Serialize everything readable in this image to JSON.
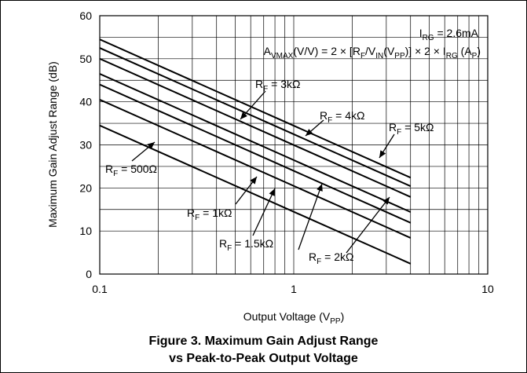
{
  "chart_data": {
    "type": "line",
    "x_scale": "log",
    "xlim": [
      0.1,
      10
    ],
    "ylim": [
      0,
      60
    ],
    "xlabel": "Output Voltage (V_PP)",
    "ylabel": "Maximum Gain Adjust Range (dB)",
    "x_ticks": [
      {
        "value": 0.1,
        "label": "0.1"
      },
      {
        "value": 1,
        "label": "1"
      },
      {
        "value": 10,
        "label": "10"
      }
    ],
    "y_ticks": [
      {
        "value": 0,
        "label": "0"
      },
      {
        "value": 10,
        "label": "10"
      },
      {
        "value": 20,
        "label": "20"
      },
      {
        "value": 30,
        "label": "30"
      },
      {
        "value": 40,
        "label": "40"
      },
      {
        "value": 50,
        "label": "50"
      },
      {
        "value": 60,
        "label": "60"
      }
    ],
    "grid": true,
    "series": [
      {
        "name": "RF = 500Ω",
        "x": [
          0.1,
          4
        ],
        "y": [
          34.5,
          2.4
        ]
      },
      {
        "name": "RF = 1kΩ",
        "x": [
          0.1,
          4
        ],
        "y": [
          40.5,
          8.4
        ]
      },
      {
        "name": "RF = 1.5kΩ",
        "x": [
          0.1,
          4
        ],
        "y": [
          44.0,
          11.9
        ]
      },
      {
        "name": "RF = 2kΩ",
        "x": [
          0.1,
          4
        ],
        "y": [
          46.5,
          14.4
        ]
      },
      {
        "name": "RF = 3kΩ",
        "x": [
          0.1,
          4
        ],
        "y": [
          50.0,
          17.9
        ]
      },
      {
        "name": "RF = 4kΩ",
        "x": [
          0.1,
          4
        ],
        "y": [
          52.5,
          20.4
        ]
      },
      {
        "name": "RF = 5kΩ",
        "x": [
          0.1,
          4
        ],
        "y": [
          54.5,
          22.4
        ]
      }
    ],
    "annotations": {
      "condition": "I_RG = 2.6mA",
      "formula": "A_VMAX(V/V) = 2 × [R_F/V_IN(V_PP)] × 2 × I_RG (A_P)"
    },
    "labels": {
      "rf_500": "R_F = 500Ω",
      "rf_1k": "R_F = 1kΩ",
      "rf_1_5k": "R_F = 1.5kΩ",
      "rf_2k": "R_F = 2kΩ",
      "rf_3k": "R_F = 3kΩ",
      "rf_4k": "R_F = 4kΩ",
      "rf_5k": "R_F = 5kΩ"
    }
  },
  "caption": {
    "line1": "Figure 3. Maximum Gain Adjust Range",
    "line2": "vs Peak-to-Peak Output Voltage"
  }
}
